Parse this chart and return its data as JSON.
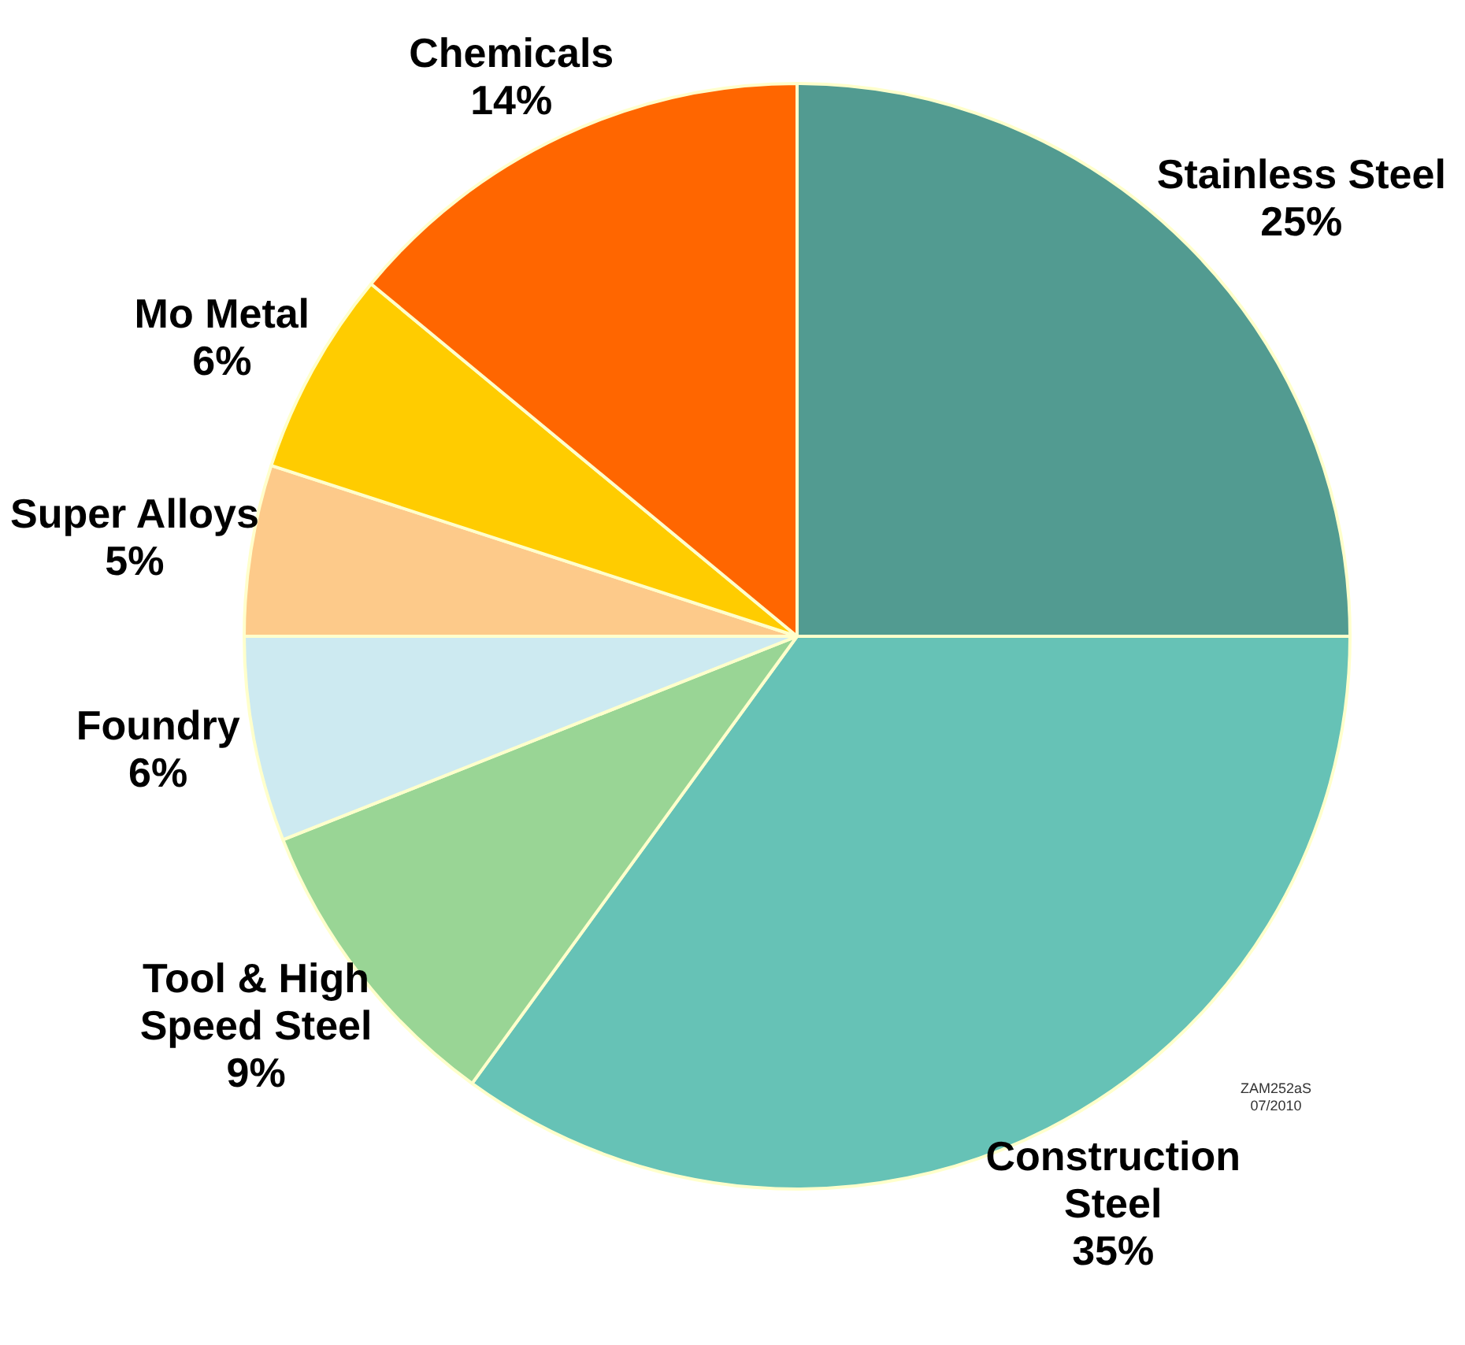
{
  "chart_data": {
    "type": "pie",
    "categories": [
      "Stainless Steel",
      "Construction Steel",
      "Tool & High Speed Steel",
      "Foundry",
      "Super Alloys",
      "Mo Metal",
      "Chemicals"
    ],
    "values": [
      25,
      35,
      9,
      6,
      5,
      6,
      14
    ],
    "colors": [
      "#529b91",
      "#66c2b6",
      "#99d595",
      "#cdeaf1",
      "#fdca8a",
      "#ffcc00",
      "#ff6600"
    ],
    "value_labels": [
      "25%",
      "35%",
      "9%",
      "6%",
      "5%",
      "6%",
      "14%"
    ],
    "annotations": [
      "ZAM252aS",
      "07/2010"
    ]
  }
}
